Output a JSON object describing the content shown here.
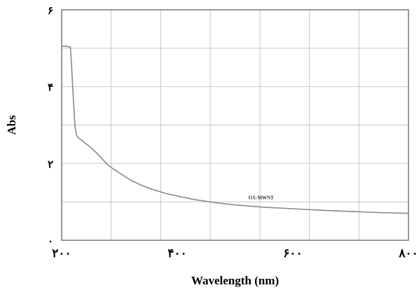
{
  "chart_data": {
    "type": "line",
    "title": "",
    "xlabel": "Wavelength (nm)",
    "ylabel": "Abs",
    "xlim": [
      200,
      800
    ],
    "ylim": [
      0,
      6
    ],
    "grid": true,
    "x_ticks": [
      {
        "value": 200,
        "label": "۲۰۰"
      },
      {
        "value": 400,
        "label": "۴۰۰"
      },
      {
        "value": 600,
        "label": "۶۰۰"
      },
      {
        "value": 800,
        "label": "۸۰۰"
      }
    ],
    "y_ticks": [
      {
        "value": 0,
        "label": "۰"
      },
      {
        "value": 2,
        "label": "۲"
      },
      {
        "value": 4,
        "label": "۴"
      },
      {
        "value": 6,
        "label": "۶"
      }
    ],
    "annotation": {
      "text": "OX-MWNT",
      "x": 545,
      "y": 1.1
    },
    "series": [
      {
        "x": [
          200,
          208,
          215,
          217,
          219,
          221,
          223,
          226,
          230,
          235,
          240,
          245,
          250,
          260,
          270,
          280,
          290,
          300,
          320,
          340,
          360,
          380,
          400,
          430,
          460,
          500,
          550,
          600,
          650,
          700,
          750,
          800
        ],
        "y": [
          5.05,
          5.05,
          5.03,
          4.6,
          4.0,
          3.5,
          2.95,
          2.72,
          2.65,
          2.6,
          2.53,
          2.48,
          2.42,
          2.28,
          2.12,
          1.96,
          1.85,
          1.75,
          1.56,
          1.42,
          1.31,
          1.22,
          1.15,
          1.06,
          0.99,
          0.92,
          0.86,
          0.82,
          0.78,
          0.75,
          0.72,
          0.7
        ]
      }
    ]
  }
}
